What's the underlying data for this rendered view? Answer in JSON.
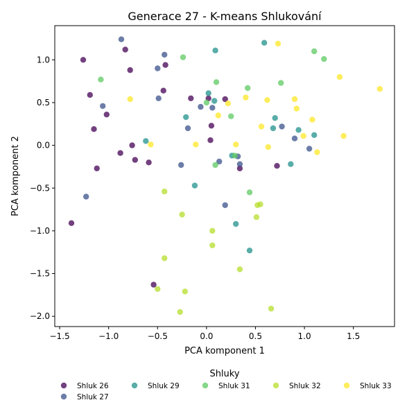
{
  "chart_data": {
    "type": "scatter",
    "title": "Generace 27 - K-means Shlukování",
    "xlabel": "PCA komponent 1",
    "ylabel": "PCA komponent 2",
    "xlim": [
      -1.55,
      1.92
    ],
    "ylim": [
      -2.12,
      1.4
    ],
    "xticks": [
      -1.5,
      -1.0,
      -0.5,
      0.0,
      0.5,
      1.0,
      1.5
    ],
    "xtick_labels": [
      "−1.5",
      "−1.0",
      "−0.5",
      "0.0",
      "0.5",
      "1.0",
      "1.5"
    ],
    "yticks": [
      -2.0,
      -1.5,
      -1.0,
      -0.5,
      0.0,
      0.5,
      1.0
    ],
    "ytick_labels": [
      "−2.0",
      "−1.5",
      "−1.0",
      "−0.5",
      "0.0",
      "0.5",
      "1.0"
    ],
    "grid": false,
    "legend": {
      "title": "Shluky",
      "placement": "bottom"
    },
    "series": [
      {
        "name": "Shluk 26",
        "color": "#440154",
        "points": [
          [
            -1.26,
            1.0
          ],
          [
            -0.83,
            1.12
          ],
          [
            -0.78,
            0.88
          ],
          [
            -0.42,
            0.94
          ],
          [
            -1.19,
            0.59
          ],
          [
            -0.44,
            0.64
          ],
          [
            -0.16,
            0.55
          ],
          [
            0.02,
            0.55
          ],
          [
            0.19,
            0.54
          ],
          [
            -1.02,
            0.36
          ],
          [
            -1.15,
            0.19
          ],
          [
            0.05,
            0.23
          ],
          [
            -0.76,
            0.0
          ],
          [
            0.04,
            0.06
          ],
          [
            -0.88,
            -0.09
          ],
          [
            -0.73,
            -0.17
          ],
          [
            -0.59,
            -0.2
          ],
          [
            -1.12,
            -0.27
          ],
          [
            0.34,
            -0.27
          ],
          [
            0.72,
            -0.24
          ],
          [
            -1.38,
            -0.91
          ],
          [
            -0.54,
            -1.63
          ]
        ]
      },
      {
        "name": "Shluk 27",
        "color": "#3b528b",
        "points": [
          [
            -0.87,
            1.24
          ],
          [
            -0.43,
            1.06
          ],
          [
            -0.5,
            0.9
          ],
          [
            -0.49,
            0.55
          ],
          [
            -1.06,
            0.46
          ],
          [
            -0.06,
            0.45
          ],
          [
            0.06,
            0.44
          ],
          [
            -0.19,
            0.2
          ],
          [
            0.77,
            0.22
          ],
          [
            0.9,
            0.08
          ],
          [
            1.05,
            -0.04
          ],
          [
            0.32,
            -0.13
          ],
          [
            0.13,
            -0.19
          ],
          [
            0.34,
            -0.22
          ],
          [
            -0.26,
            -0.23
          ],
          [
            0.19,
            -0.7
          ],
          [
            -1.23,
            -0.6
          ]
        ]
      },
      {
        "name": "Shluk 29",
        "color": "#21918c",
        "points": [
          [
            0.59,
            1.2
          ],
          [
            0.09,
            1.11
          ],
          [
            0.02,
            0.61
          ],
          [
            0.08,
            0.52
          ],
          [
            -0.21,
            0.33
          ],
          [
            0.7,
            0.32
          ],
          [
            0.94,
            0.18
          ],
          [
            0.68,
            0.2
          ],
          [
            1.1,
            0.12
          ],
          [
            -0.62,
            0.05
          ],
          [
            0.26,
            -0.12
          ],
          [
            0.86,
            -0.22
          ],
          [
            -0.12,
            -0.47
          ],
          [
            0.3,
            -0.92
          ],
          [
            0.44,
            -1.23
          ]
        ]
      },
      {
        "name": "Shluk 31",
        "color": "#5ec962",
        "points": [
          [
            1.1,
            1.1
          ],
          [
            1.2,
            1.01
          ],
          [
            -0.24,
            1.03
          ],
          [
            -1.08,
            0.77
          ],
          [
            0.1,
            0.74
          ],
          [
            0.76,
            0.73
          ],
          [
            0.42,
            0.67
          ],
          [
            0.0,
            0.5
          ],
          [
            0.25,
            0.34
          ],
          [
            0.09,
            -0.23
          ],
          [
            0.29,
            -0.12
          ],
          [
            0.44,
            -0.55
          ]
        ]
      },
      {
        "name": "Shluk 32",
        "color": "#b5de2b",
        "points": [
          [
            -0.43,
            -0.54
          ],
          [
            0.55,
            -0.69
          ],
          [
            0.52,
            -0.7
          ],
          [
            -0.25,
            -0.81
          ],
          [
            0.51,
            -0.84
          ],
          [
            0.06,
            -1.0
          ],
          [
            0.06,
            -1.17
          ],
          [
            -0.43,
            -1.32
          ],
          [
            0.34,
            -1.45
          ],
          [
            -0.5,
            -1.68
          ],
          [
            -0.22,
            -1.71
          ],
          [
            -0.27,
            -1.95
          ],
          [
            0.66,
            -1.91
          ]
        ]
      },
      {
        "name": "Shluk 33",
        "color": "#fde725",
        "points": [
          [
            0.73,
            1.19
          ],
          [
            1.36,
            0.8
          ],
          [
            1.77,
            0.66
          ],
          [
            -0.78,
            0.54
          ],
          [
            0.4,
            0.56
          ],
          [
            0.62,
            0.53
          ],
          [
            0.9,
            0.54
          ],
          [
            0.22,
            0.49
          ],
          [
            0.92,
            0.43
          ],
          [
            0.12,
            0.35
          ],
          [
            1.08,
            0.3
          ],
          [
            0.56,
            0.22
          ],
          [
            0.99,
            0.11
          ],
          [
            1.4,
            0.11
          ],
          [
            -0.57,
            0.01
          ],
          [
            -0.11,
            0.01
          ],
          [
            0.3,
            0.01
          ],
          [
            0.63,
            -0.02
          ],
          [
            1.13,
            -0.08
          ]
        ]
      }
    ]
  }
}
